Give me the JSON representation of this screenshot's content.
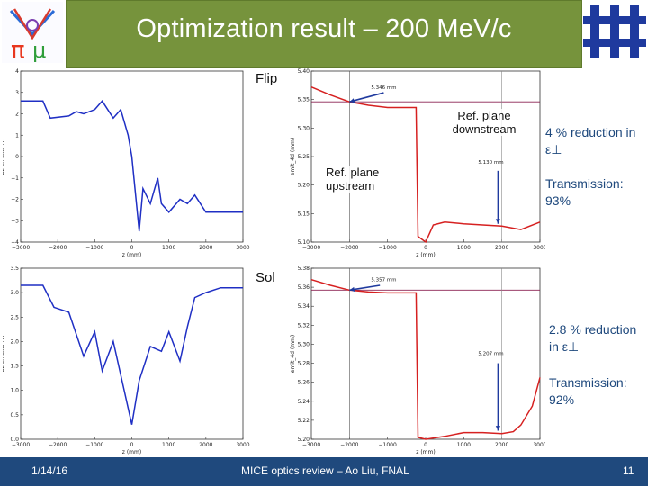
{
  "header": {
    "title": "Optimization result – 200 MeV/c"
  },
  "logos": {
    "left": "MICE logo",
    "right": "Fermilab logo"
  },
  "panels": {
    "flip": {
      "label": "Flip",
      "ref_downstream": "Ref. plane downstream",
      "ref_upstream": "Ref. plane upstream"
    },
    "sol": {
      "label": "Sol"
    }
  },
  "notes": {
    "flip_reduction": "4 % reduction in ε⊥",
    "flip_transmission": "Transmission: 93%",
    "sol_reduction": "2.8 % reduction in ε⊥",
    "sol_transmission": "Transmission: 92%"
  },
  "footer": {
    "date": "1/14/16",
    "center": "MICE optics review – Ao Liu, FNAL",
    "page": "11"
  },
  "colors": {
    "title_bar": "#76933c",
    "footer_bar": "#1f497d",
    "curve_blue": "#1f2fc4",
    "curve_red": "#d62020",
    "ref_line": "#8b2252",
    "arrow": "#1f3a9e"
  },
  "chart_data": [
    {
      "type": "line",
      "panel": "flip-bz",
      "xlabel": "z (mm)",
      "ylabel": "Bz on-axis (T)",
      "xlim": [
        -3000,
        3000
      ],
      "ylim": [
        -4,
        4
      ],
      "xticks": [
        "−3000",
        "−2000",
        "−1000",
        "0",
        "1000",
        "2000",
        "3000"
      ],
      "yticks": [
        "−4",
        "−3",
        "−2",
        "−1",
        "0",
        "1",
        "2",
        "3",
        "4"
      ],
      "series": [
        {
          "x": [
            -3000,
            -2400,
            -2200,
            -1700,
            -1500,
            -1300,
            -1000,
            -800,
            -500,
            -300,
            -100,
            0,
            200,
            300,
            500,
            700,
            800,
            1000,
            1300,
            1500,
            1700,
            2000,
            2200,
            3000
          ],
          "y": [
            2.6,
            2.6,
            1.8,
            1.9,
            2.1,
            2.0,
            2.2,
            2.6,
            1.8,
            2.2,
            1.0,
            0.0,
            -3.5,
            -1.5,
            -2.2,
            -1.0,
            -2.2,
            -2.6,
            -2.0,
            -2.2,
            -1.8,
            -2.6,
            -2.6,
            -2.6
          ]
        }
      ]
    },
    {
      "type": "line",
      "panel": "flip-emit",
      "xlabel": "z (mm)",
      "ylabel": "emit_4d (mm)",
      "xlim": [
        -3000,
        3000
      ],
      "ylim": [
        5.1,
        5.4
      ],
      "xticks": [
        "−3000",
        "−2000",
        "−1000",
        "0",
        "1000",
        "2000",
        "3000"
      ],
      "yticks": [
        "5.10",
        "5.15",
        "5.20",
        "5.25",
        "5.30",
        "5.35",
        "5.40"
      ],
      "annotations": [
        "5.346 mm",
        "5.130 mm"
      ],
      "series": [
        {
          "x": [
            -3000,
            -2500,
            -2000,
            -1500,
            -1000,
            -500,
            -400,
            -250,
            -200,
            0,
            200,
            500,
            1000,
            1500,
            2000,
            2500,
            3000
          ],
          "y": [
            5.372,
            5.358,
            5.346,
            5.34,
            5.336,
            5.336,
            5.336,
            5.336,
            5.11,
            5.1,
            5.13,
            5.135,
            5.132,
            5.13,
            5.128,
            5.122,
            5.135
          ]
        }
      ]
    },
    {
      "type": "line",
      "panel": "sol-bz",
      "xlabel": "z (mm)",
      "ylabel": "Bz on-axis (T)",
      "xlim": [
        -3000,
        3000
      ],
      "ylim": [
        0.0,
        3.5
      ],
      "xticks": [
        "−3000",
        "−2000",
        "−1000",
        "0",
        "1000",
        "2000",
        "3000"
      ],
      "yticks": [
        "0.0",
        "0.5",
        "1.0",
        "1.5",
        "2.0",
        "2.5",
        "3.0",
        "3.5"
      ],
      "series": [
        {
          "x": [
            -3000,
            -2400,
            -2100,
            -1700,
            -1300,
            -1000,
            -800,
            -500,
            0,
            200,
            500,
            800,
            1000,
            1300,
            1500,
            1700,
            2000,
            2400,
            3000
          ],
          "y": [
            3.15,
            3.15,
            2.7,
            2.6,
            1.7,
            2.2,
            1.4,
            2.0,
            0.3,
            1.2,
            1.9,
            1.8,
            2.2,
            1.6,
            2.3,
            2.9,
            3.0,
            3.1,
            3.1
          ]
        }
      ]
    },
    {
      "type": "line",
      "panel": "sol-emit",
      "xlabel": "z (mm)",
      "ylabel": "emit_4d (mm)",
      "xlim": [
        -3000,
        3000
      ],
      "ylim": [
        5.2,
        5.38
      ],
      "xticks": [
        "−3000",
        "−2000",
        "−1000",
        "0",
        "1000",
        "2000",
        "3000"
      ],
      "yticks": [
        "5.20",
        "5.22",
        "5.24",
        "5.26",
        "5.28",
        "5.30",
        "5.32",
        "5.34",
        "5.36",
        "5.38"
      ],
      "annotations": [
        "5.357 mm",
        "5.207 mm"
      ],
      "series": [
        {
          "x": [
            -3000,
            -2500,
            -2000,
            -1500,
            -1000,
            -500,
            -250,
            -200,
            0,
            500,
            1000,
            1500,
            2000,
            2300,
            2500,
            2800,
            3000
          ],
          "y": [
            5.368,
            5.362,
            5.357,
            5.355,
            5.354,
            5.354,
            5.354,
            5.202,
            5.2,
            5.203,
            5.207,
            5.207,
            5.206,
            5.208,
            5.215,
            5.235,
            5.265
          ]
        }
      ]
    }
  ]
}
